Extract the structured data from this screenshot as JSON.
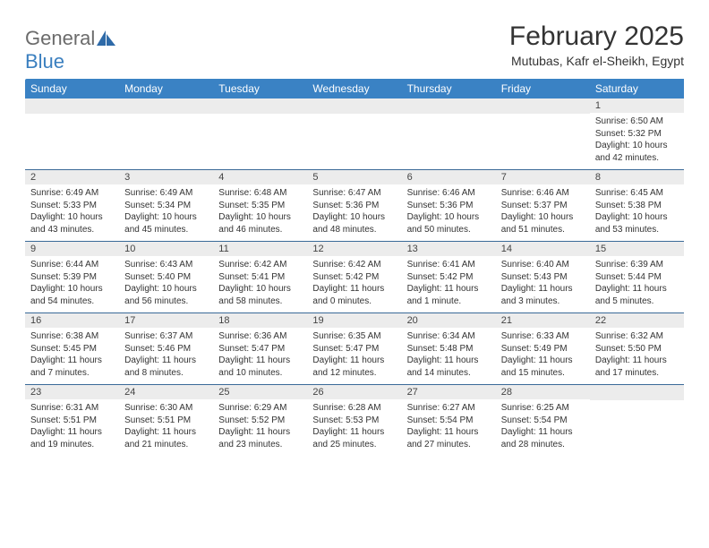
{
  "logo": {
    "text1": "General",
    "text2": "Blue"
  },
  "colors": {
    "header_bg": "#3a82c4",
    "header_text": "#ffffff",
    "daynum_bg": "#ececec",
    "row_border": "#3a6a98",
    "body_text": "#333333",
    "logo_gray": "#6b6b6b",
    "logo_blue": "#3a7fbf"
  },
  "title": "February 2025",
  "location": "Mutubas, Kafr el-Sheikh, Egypt",
  "day_headers": [
    "Sunday",
    "Monday",
    "Tuesday",
    "Wednesday",
    "Thursday",
    "Friday",
    "Saturday"
  ],
  "weeks": [
    [
      {
        "empty": true
      },
      {
        "empty": true
      },
      {
        "empty": true
      },
      {
        "empty": true
      },
      {
        "empty": true
      },
      {
        "empty": true
      },
      {
        "num": "1",
        "sunrise": "Sunrise: 6:50 AM",
        "sunset": "Sunset: 5:32 PM",
        "daylight": "Daylight: 10 hours and 42 minutes."
      }
    ],
    [
      {
        "num": "2",
        "sunrise": "Sunrise: 6:49 AM",
        "sunset": "Sunset: 5:33 PM",
        "daylight": "Daylight: 10 hours and 43 minutes."
      },
      {
        "num": "3",
        "sunrise": "Sunrise: 6:49 AM",
        "sunset": "Sunset: 5:34 PM",
        "daylight": "Daylight: 10 hours and 45 minutes."
      },
      {
        "num": "4",
        "sunrise": "Sunrise: 6:48 AM",
        "sunset": "Sunset: 5:35 PM",
        "daylight": "Daylight: 10 hours and 46 minutes."
      },
      {
        "num": "5",
        "sunrise": "Sunrise: 6:47 AM",
        "sunset": "Sunset: 5:36 PM",
        "daylight": "Daylight: 10 hours and 48 minutes."
      },
      {
        "num": "6",
        "sunrise": "Sunrise: 6:46 AM",
        "sunset": "Sunset: 5:36 PM",
        "daylight": "Daylight: 10 hours and 50 minutes."
      },
      {
        "num": "7",
        "sunrise": "Sunrise: 6:46 AM",
        "sunset": "Sunset: 5:37 PM",
        "daylight": "Daylight: 10 hours and 51 minutes."
      },
      {
        "num": "8",
        "sunrise": "Sunrise: 6:45 AM",
        "sunset": "Sunset: 5:38 PM",
        "daylight": "Daylight: 10 hours and 53 minutes."
      }
    ],
    [
      {
        "num": "9",
        "sunrise": "Sunrise: 6:44 AM",
        "sunset": "Sunset: 5:39 PM",
        "daylight": "Daylight: 10 hours and 54 minutes."
      },
      {
        "num": "10",
        "sunrise": "Sunrise: 6:43 AM",
        "sunset": "Sunset: 5:40 PM",
        "daylight": "Daylight: 10 hours and 56 minutes."
      },
      {
        "num": "11",
        "sunrise": "Sunrise: 6:42 AM",
        "sunset": "Sunset: 5:41 PM",
        "daylight": "Daylight: 10 hours and 58 minutes."
      },
      {
        "num": "12",
        "sunrise": "Sunrise: 6:42 AM",
        "sunset": "Sunset: 5:42 PM",
        "daylight": "Daylight: 11 hours and 0 minutes."
      },
      {
        "num": "13",
        "sunrise": "Sunrise: 6:41 AM",
        "sunset": "Sunset: 5:42 PM",
        "daylight": "Daylight: 11 hours and 1 minute."
      },
      {
        "num": "14",
        "sunrise": "Sunrise: 6:40 AM",
        "sunset": "Sunset: 5:43 PM",
        "daylight": "Daylight: 11 hours and 3 minutes."
      },
      {
        "num": "15",
        "sunrise": "Sunrise: 6:39 AM",
        "sunset": "Sunset: 5:44 PM",
        "daylight": "Daylight: 11 hours and 5 minutes."
      }
    ],
    [
      {
        "num": "16",
        "sunrise": "Sunrise: 6:38 AM",
        "sunset": "Sunset: 5:45 PM",
        "daylight": "Daylight: 11 hours and 7 minutes."
      },
      {
        "num": "17",
        "sunrise": "Sunrise: 6:37 AM",
        "sunset": "Sunset: 5:46 PM",
        "daylight": "Daylight: 11 hours and 8 minutes."
      },
      {
        "num": "18",
        "sunrise": "Sunrise: 6:36 AM",
        "sunset": "Sunset: 5:47 PM",
        "daylight": "Daylight: 11 hours and 10 minutes."
      },
      {
        "num": "19",
        "sunrise": "Sunrise: 6:35 AM",
        "sunset": "Sunset: 5:47 PM",
        "daylight": "Daylight: 11 hours and 12 minutes."
      },
      {
        "num": "20",
        "sunrise": "Sunrise: 6:34 AM",
        "sunset": "Sunset: 5:48 PM",
        "daylight": "Daylight: 11 hours and 14 minutes."
      },
      {
        "num": "21",
        "sunrise": "Sunrise: 6:33 AM",
        "sunset": "Sunset: 5:49 PM",
        "daylight": "Daylight: 11 hours and 15 minutes."
      },
      {
        "num": "22",
        "sunrise": "Sunrise: 6:32 AM",
        "sunset": "Sunset: 5:50 PM",
        "daylight": "Daylight: 11 hours and 17 minutes."
      }
    ],
    [
      {
        "num": "23",
        "sunrise": "Sunrise: 6:31 AM",
        "sunset": "Sunset: 5:51 PM",
        "daylight": "Daylight: 11 hours and 19 minutes."
      },
      {
        "num": "24",
        "sunrise": "Sunrise: 6:30 AM",
        "sunset": "Sunset: 5:51 PM",
        "daylight": "Daylight: 11 hours and 21 minutes."
      },
      {
        "num": "25",
        "sunrise": "Sunrise: 6:29 AM",
        "sunset": "Sunset: 5:52 PM",
        "daylight": "Daylight: 11 hours and 23 minutes."
      },
      {
        "num": "26",
        "sunrise": "Sunrise: 6:28 AM",
        "sunset": "Sunset: 5:53 PM",
        "daylight": "Daylight: 11 hours and 25 minutes."
      },
      {
        "num": "27",
        "sunrise": "Sunrise: 6:27 AM",
        "sunset": "Sunset: 5:54 PM",
        "daylight": "Daylight: 11 hours and 27 minutes."
      },
      {
        "num": "28",
        "sunrise": "Sunrise: 6:25 AM",
        "sunset": "Sunset: 5:54 PM",
        "daylight": "Daylight: 11 hours and 28 minutes."
      },
      {
        "empty": true
      }
    ]
  ]
}
